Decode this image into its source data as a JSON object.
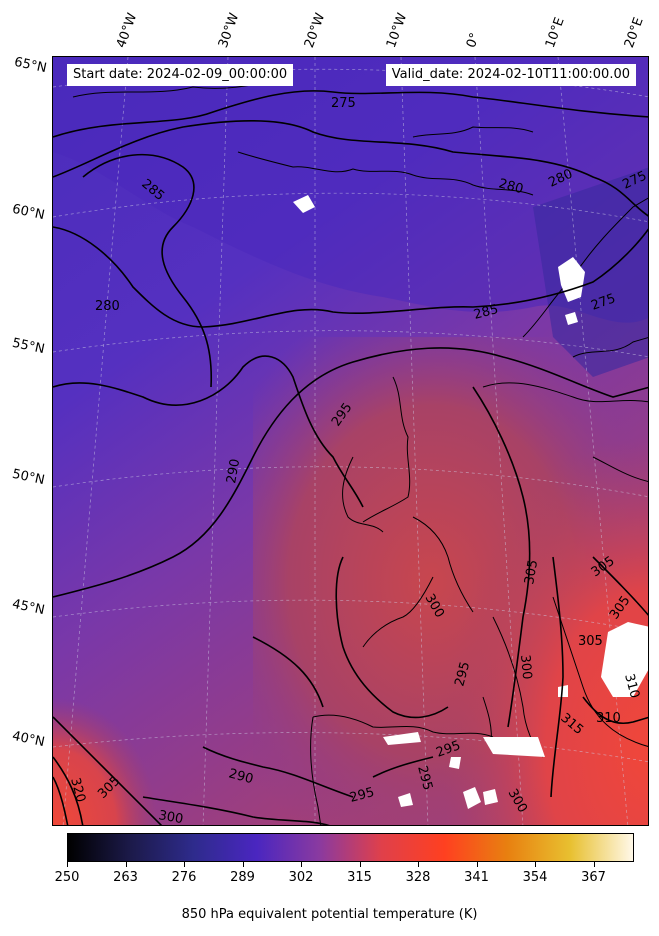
{
  "header": {
    "start_date": "Start date: 2024-02-09_00:00:00",
    "valid_date": "Valid_date: 2024-02-10T11:00:00.00"
  },
  "longitude_labels": [
    "40°W",
    "30°W",
    "20°W",
    "10°W",
    "0°",
    "10°E",
    "20°E"
  ],
  "latitude_labels": [
    "65°N",
    "60°N",
    "55°N",
    "50°N",
    "45°N",
    "40°N"
  ],
  "contour_labels": [
    "275",
    "275",
    "275",
    "280",
    "280",
    "280",
    "285",
    "285",
    "290",
    "290",
    "295",
    "295",
    "295",
    "295",
    "295",
    "300",
    "300",
    "300",
    "300",
    "305",
    "305",
    "305",
    "305",
    "305",
    "310",
    "310",
    "315",
    "320"
  ],
  "colorbar": {
    "title": "850 hPa equivalent potential temperature (K)",
    "ticks": [
      "250",
      "263",
      "276",
      "289",
      "302",
      "315",
      "328",
      "341",
      "354",
      "367"
    ],
    "range": [
      250,
      376
    ],
    "colors": [
      "#000000",
      "#1c1a4a",
      "#2e2b8c",
      "#4a26c0",
      "#8a3aa0",
      "#e0404a",
      "#ff4020",
      "#e88010",
      "#e8c030",
      "#fff8e8"
    ]
  },
  "field_colors": {
    "cold": "#3a2aa8",
    "cool": "#4f2fc0",
    "mid": "#7a3aa8",
    "warm": "#b8425e",
    "hot": "#f0453a",
    "missing": "#ffffff",
    "contour": "#000000"
  }
}
